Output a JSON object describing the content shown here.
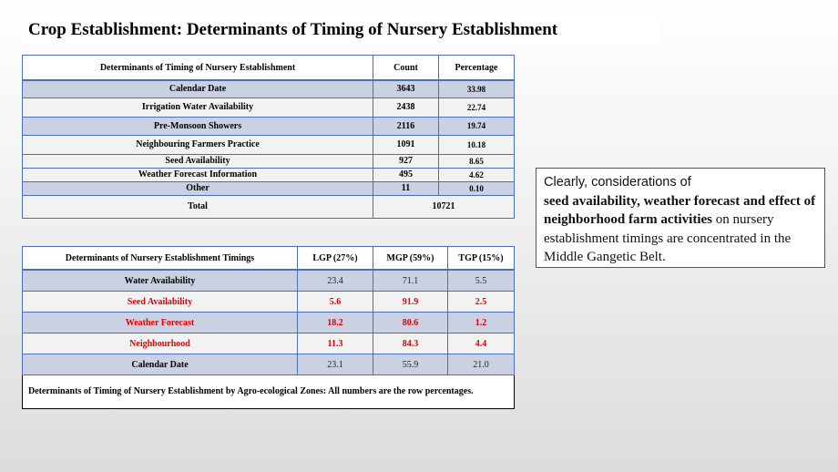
{
  "title": "Crop Establishment: Determinants of Timing of Nursery Establishment",
  "table1": {
    "headers": [
      "Determinants of Timing of Nursery Establishment",
      "Count",
      "Percentage"
    ],
    "rows": [
      {
        "label": "Calendar Date",
        "count": "3643",
        "pct": "33.98"
      },
      {
        "label": "Irrigation Water Availability",
        "count": "2438",
        "pct": "22.74"
      },
      {
        "label": "Pre-Monsoon Showers",
        "count": "2116",
        "pct": "19.74"
      },
      {
        "label": "Neighbouring Farmers Practice",
        "count": "1091",
        "pct": "10.18"
      },
      {
        "label": "Seed Availability",
        "count": "927",
        "pct": "8.65"
      },
      {
        "label": "Weather Forecast Information",
        "count": "495",
        "pct": "4.62"
      },
      {
        "label": "Other",
        "count": "11",
        "pct": "0.10"
      }
    ],
    "total_label": "Total",
    "total_value": "10721"
  },
  "table2": {
    "headers": [
      "Determinants of Nursery Establishment Timings",
      "LGP (27%)",
      "MGP (59%)",
      "TGP (15%)"
    ],
    "rows": [
      {
        "label": "Water Availability",
        "lgp": "23.4",
        "mgp": "71.1",
        "tgp": "5.5",
        "highlight": false
      },
      {
        "label": "Seed Availability",
        "lgp": "5.6",
        "mgp": "91.9",
        "tgp": "2.5",
        "highlight": true
      },
      {
        "label": "Weather Forecast",
        "lgp": "18.2",
        "mgp": "80.6",
        "tgp": "1.2",
        "highlight": true
      },
      {
        "label": "Neighbourhood",
        "lgp": "11.3",
        "mgp": "84.3",
        "tgp": "4.4",
        "highlight": true
      },
      {
        "label": "Calendar Date",
        "lgp": "23.1",
        "mgp": "55.9",
        "tgp": "21.0",
        "highlight": false
      }
    ],
    "caption": "Determinants of Timing of Nursery Establishment by Agro-ecological Zones: All numbers are the row percentages."
  },
  "note": {
    "line1": "Clearly, considerations of",
    "bold": "seed availability, weather forecast and effect of neighborhood farm activities",
    "after_bold": " on",
    "rest": "nursery establishment timings are concentrated in the Middle Gangetic Belt."
  },
  "colors": {
    "highlight_red": "#e00000",
    "band_blue": "#c9d1e3",
    "border_blue": "#4a6fb3"
  }
}
